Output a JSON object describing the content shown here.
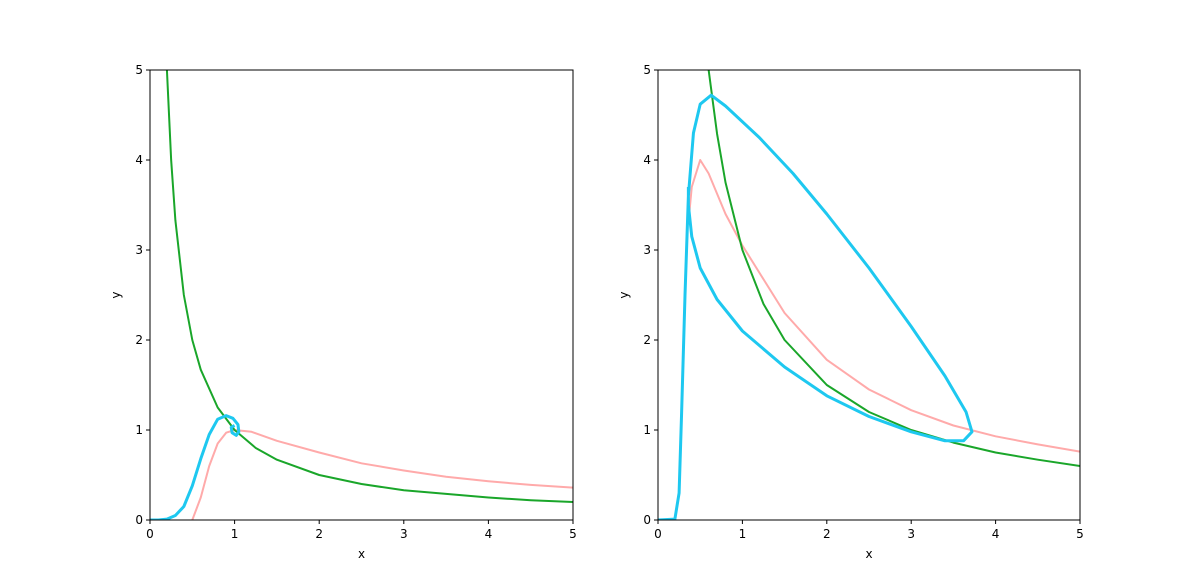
{
  "chart_data": [
    {
      "type": "line",
      "xlabel": "x",
      "ylabel": "y",
      "xlim": [
        0,
        5
      ],
      "ylim": [
        0,
        5
      ],
      "xticks": [
        0,
        1,
        2,
        3,
        4,
        5
      ],
      "yticks": [
        0,
        1,
        2,
        3,
        4,
        5
      ],
      "series": [
        {
          "color": "#ffaaaa",
          "x": [
            0.5,
            0.6,
            0.7,
            0.8,
            0.9,
            1.0,
            1.2,
            1.5,
            2,
            2.5,
            3,
            3.5,
            4,
            4.5,
            5
          ],
          "values": [
            0,
            0.25,
            0.6,
            0.85,
            0.97,
            1.0,
            0.98,
            0.88,
            0.75,
            0.63,
            0.55,
            0.48,
            0.43,
            0.39,
            0.36
          ]
        },
        {
          "color": "#1aa62a",
          "x": [
            0.2,
            0.25,
            0.3,
            0.4,
            0.5,
            0.6,
            0.8,
            1,
            1.25,
            1.5,
            2,
            2.5,
            3,
            3.5,
            4,
            4.5,
            5
          ],
          "values": [
            5,
            4,
            3.33,
            2.5,
            2,
            1.67,
            1.25,
            1,
            0.8,
            0.67,
            0.5,
            0.4,
            0.33,
            0.29,
            0.25,
            0.22,
            0.2
          ]
        },
        {
          "color": "#1ec8f0",
          "x": [
            0,
            0.1,
            0.2,
            0.3,
            0.4,
            0.5,
            0.6,
            0.7,
            0.8,
            0.9,
            0.98,
            1.04,
            1.05,
            1.02,
            0.97,
            0.96,
            1.0
          ],
          "values": [
            0,
            0,
            0.01,
            0.05,
            0.15,
            0.38,
            0.68,
            0.95,
            1.12,
            1.16,
            1.13,
            1.06,
            0.98,
            0.94,
            0.97,
            1.03,
            1.05
          ]
        }
      ]
    },
    {
      "type": "line",
      "xlabel": "x",
      "ylabel": "y",
      "xlim": [
        0,
        5
      ],
      "ylim": [
        0,
        5
      ],
      "xticks": [
        0,
        1,
        2,
        3,
        4,
        5
      ],
      "yticks": [
        0,
        1,
        2,
        3,
        4,
        5
      ],
      "series": [
        {
          "color": "#ffaaaa",
          "x": [
            0.36,
            0.4,
            0.5,
            0.6,
            0.8,
            1,
            1.5,
            2,
            2.5,
            3,
            3.5,
            4,
            4.5,
            5
          ],
          "values": [
            3.3,
            3.7,
            4.0,
            3.85,
            3.4,
            3.05,
            2.3,
            1.78,
            1.45,
            1.22,
            1.05,
            0.93,
            0.84,
            0.76
          ]
        },
        {
          "color": "#1aa62a",
          "x": [
            0.6,
            0.7,
            0.8,
            1,
            1.25,
            1.5,
            2,
            2.5,
            3,
            3.5,
            4,
            4.5,
            5
          ],
          "values": [
            5,
            4.29,
            3.75,
            3,
            2.4,
            2,
            1.5,
            1.2,
            1,
            0.86,
            0.75,
            0.67,
            0.6
          ]
        },
        {
          "color": "#1ec8f0",
          "x": [
            0,
            0.2,
            0.25,
            0.28,
            0.32,
            0.36,
            0.42,
            0.5,
            0.63,
            0.8,
            1.2,
            1.6,
            2,
            2.5,
            3,
            3.4,
            3.65,
            3.72,
            3.62,
            3.4,
            3,
            2.5,
            2,
            1.5,
            1,
            0.7,
            0.5,
            0.4,
            0.36,
            0.36
          ],
          "values": [
            0,
            0.01,
            0.3,
            1.2,
            2.5,
            3.6,
            4.3,
            4.62,
            4.72,
            4.6,
            4.25,
            3.85,
            3.4,
            2.8,
            2.15,
            1.6,
            1.2,
            0.98,
            0.88,
            0.88,
            0.98,
            1.15,
            1.38,
            1.7,
            2.1,
            2.45,
            2.8,
            3.15,
            3.5,
            3.7
          ]
        }
      ]
    }
  ]
}
